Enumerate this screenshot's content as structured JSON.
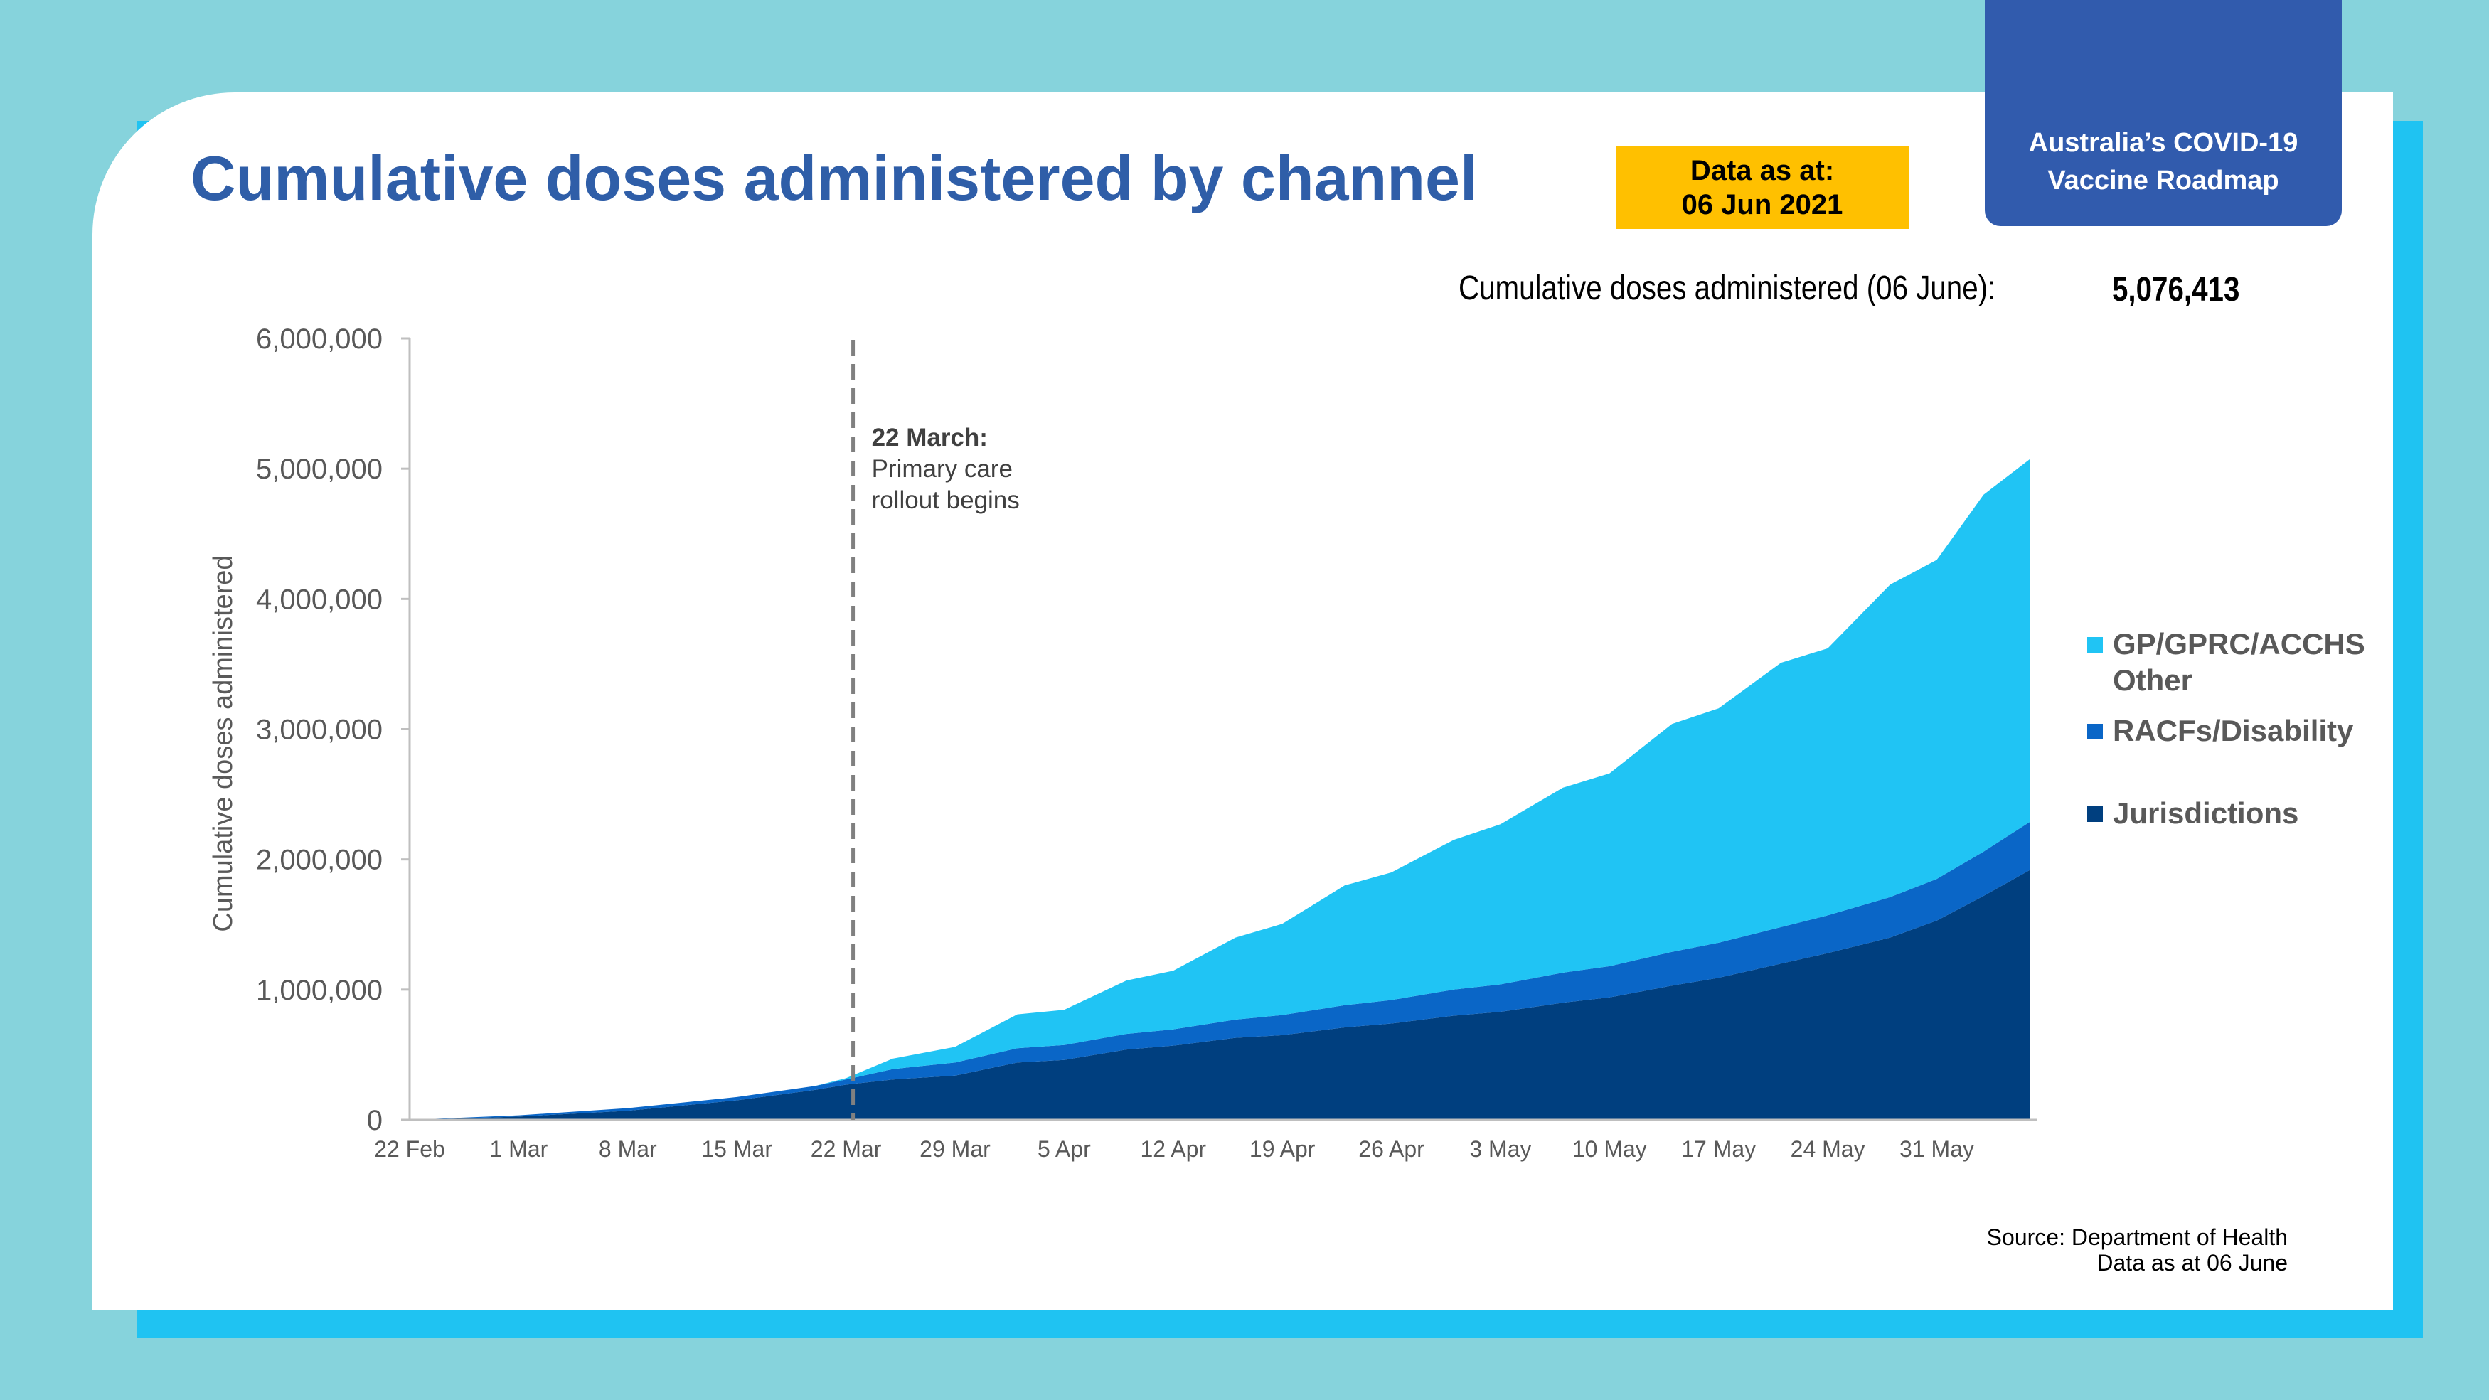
{
  "header": {
    "title": "Cumulative doses administered by channel",
    "data_as_at_line1": "Data as at:",
    "data_as_at_line2": "06 Jun 2021",
    "roadmap_line1": "Australia’s COVID-19",
    "roadmap_line2": "Vaccine Roadmap"
  },
  "summary": {
    "label": "Cumulative doses administered (06 June):",
    "value": "5,076,413"
  },
  "source": {
    "line1": "Source: Department of Health",
    "line2": "Data as at 06 June"
  },
  "colors": {
    "jurisdictions": "#003F7F",
    "racfs": "#0A66C7",
    "gp": "#20C4F4",
    "title": "#2F5EA8",
    "date_box": "#FFC000",
    "roadmap_box": "#315BAD"
  },
  "chart_data": {
    "type": "area",
    "stacked": true,
    "ylabel": "Cumulative doses administered",
    "ylim": [
      0,
      6000000
    ],
    "y_ticks": [
      0,
      1000000,
      2000000,
      3000000,
      4000000,
      5000000,
      6000000
    ],
    "y_tick_labels": [
      "0",
      "1,000,000",
      "2,000,000",
      "3,000,000",
      "4,000,000",
      "5,000,000",
      "6,000,000"
    ],
    "x_range": [
      "2021-02-22",
      "2021-06-06"
    ],
    "x_tick_dates": [
      "2021-02-22",
      "2021-03-01",
      "2021-03-08",
      "2021-03-15",
      "2021-03-22",
      "2021-03-29",
      "2021-04-05",
      "2021-04-12",
      "2021-04-19",
      "2021-04-26",
      "2021-05-03",
      "2021-05-10",
      "2021-05-17",
      "2021-05-24",
      "2021-05-31"
    ],
    "x_tick_labels": [
      "22 Feb",
      "1 Mar",
      "8 Mar",
      "15 Mar",
      "22 Mar",
      "29 Mar",
      "5 Apr",
      "12 Apr",
      "19 Apr",
      "26 Apr",
      "3 May",
      "10 May",
      "17 May",
      "24 May",
      "31 May"
    ],
    "x": [
      "2021-02-22",
      "2021-03-01",
      "2021-03-08",
      "2021-03-15",
      "2021-03-20",
      "2021-03-22",
      "2021-03-25",
      "2021-03-29",
      "2021-04-02",
      "2021-04-05",
      "2021-04-09",
      "2021-04-12",
      "2021-04-16",
      "2021-04-19",
      "2021-04-23",
      "2021-04-26",
      "2021-04-30",
      "2021-05-03",
      "2021-05-07",
      "2021-05-10",
      "2021-05-14",
      "2021-05-17",
      "2021-05-21",
      "2021-05-24",
      "2021-05-28",
      "2021-05-31",
      "2021-06-03",
      "2021-06-06"
    ],
    "series": [
      {
        "name": "Jurisdictions",
        "values": [
          0,
          25000,
          70000,
          150000,
          230000,
          270000,
          310000,
          340000,
          440000,
          460000,
          540000,
          570000,
          630000,
          650000,
          710000,
          740000,
          800000,
          830000,
          900000,
          940000,
          1030000,
          1090000,
          1200000,
          1280000,
          1400000,
          1530000,
          1720000,
          1920000
        ]
      },
      {
        "name": "RACFs/Disability",
        "values": [
          0,
          10000,
          20000,
          25000,
          30000,
          40000,
          80000,
          100000,
          110000,
          115000,
          120000,
          125000,
          140000,
          155000,
          170000,
          180000,
          200000,
          210000,
          230000,
          240000,
          260000,
          270000,
          280000,
          290000,
          310000,
          320000,
          340000,
          370000
        ]
      },
      {
        "name": "GP/GPRC/ACCHS Other",
        "values": [
          0,
          0,
          0,
          0,
          0,
          10000,
          80000,
          120000,
          260000,
          270000,
          410000,
          450000,
          630000,
          700000,
          920000,
          980000,
          1150000,
          1230000,
          1420000,
          1480000,
          1750000,
          1800000,
          2030000,
          2050000,
          2400000,
          2450000,
          2740000,
          2786413
        ]
      }
    ],
    "legend": [
      "GP/GPRC/ACCHS Other",
      "RACFs/Disability",
      "Jurisdictions"
    ],
    "legend_placement": "right",
    "annotation": {
      "x": "2021-03-22",
      "title": "22 March:",
      "line2": "Primary care",
      "line3": "rollout begins"
    },
    "grid": false
  }
}
